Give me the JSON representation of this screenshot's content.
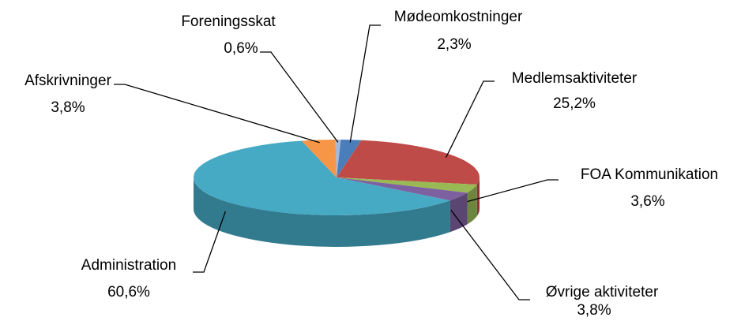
{
  "chart_data": {
    "type": "pie3d",
    "categories": [
      "Mødeomkostninger",
      "Medlemsaktiviteter",
      "FOA Kommunikation",
      "Øvrige aktiviteter",
      "Administration",
      "Afskrivninger",
      "Foreningsskat"
    ],
    "values": [
      2.3,
      25.2,
      3.6,
      3.8,
      60.6,
      3.8,
      0.6
    ],
    "value_labels": [
      "2,3%",
      "25,2%",
      "3,6%",
      "3,8%",
      "60,6%",
      "3,8%",
      "0,6%"
    ],
    "colors": [
      "#4a7ebb",
      "#be4b48",
      "#98b954",
      "#7d60a0",
      "#46aac5",
      "#f79646",
      "#a5b8d8"
    ]
  }
}
